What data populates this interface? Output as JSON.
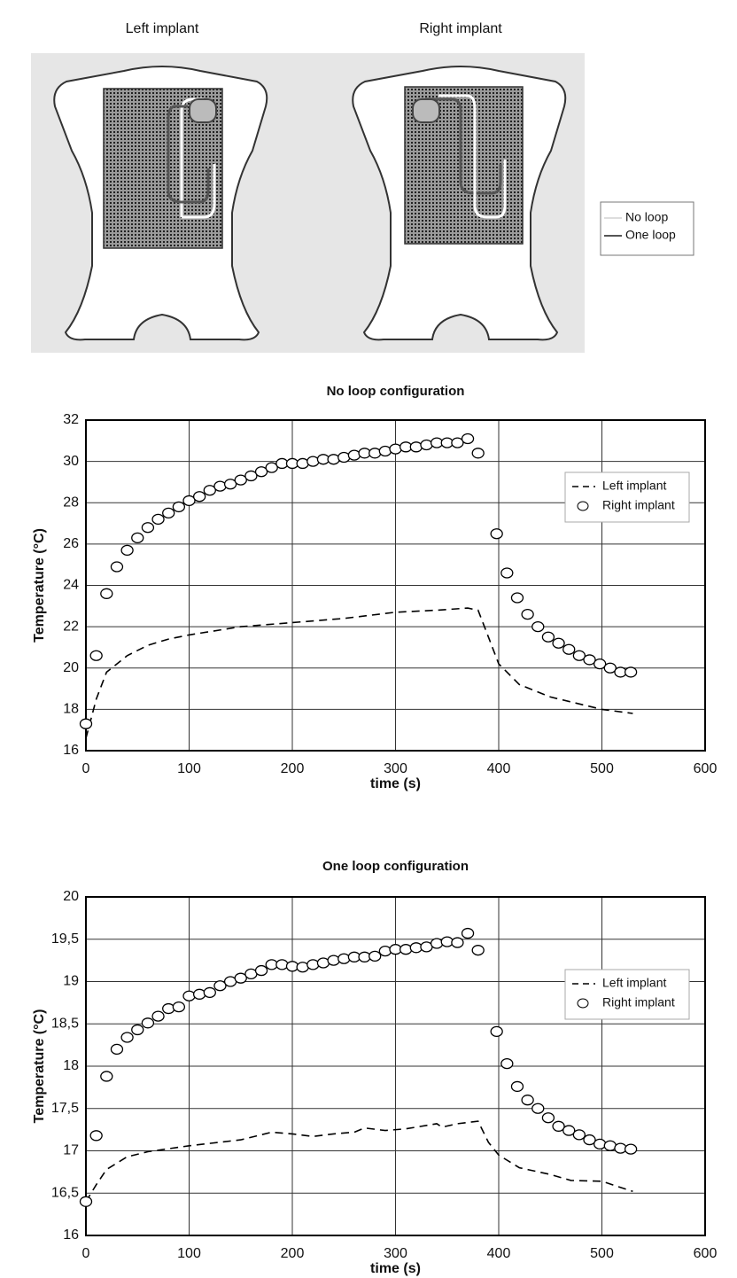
{
  "diagram": {
    "labels": [
      "Left implant",
      "Right implant"
    ],
    "legend": [
      "No loop",
      "One loop"
    ]
  },
  "chart_data": [
    {
      "type": "line",
      "title": "No loop configuration",
      "x_label": "time (s)",
      "y_label": "Temperature (°C)",
      "xlim": [
        0,
        600
      ],
      "xticks": [
        0,
        100,
        200,
        300,
        400,
        500,
        600
      ],
      "ylim": [
        16,
        32
      ],
      "yticks": [
        16,
        18,
        20,
        22,
        24,
        26,
        28,
        30,
        32
      ],
      "grid": true,
      "legend": "right",
      "series": [
        {
          "name": "Left implant",
          "color": "#000000",
          "style": "dashed",
          "x": [
            0,
            10,
            20,
            40,
            60,
            80,
            100,
            150,
            200,
            250,
            300,
            340,
            370,
            380,
            390,
            400,
            420,
            450,
            500,
            530
          ],
          "values": [
            16.6,
            18.5,
            19.8,
            20.6,
            21.1,
            21.4,
            21.6,
            22.0,
            22.2,
            22.4,
            22.7,
            22.8,
            22.9,
            22.8,
            21.5,
            20.2,
            19.2,
            18.6,
            18.0,
            17.8
          ]
        },
        {
          "name": "Right implant",
          "color": "#000000",
          "marker": "circle",
          "x": [
            0,
            10,
            20,
            30,
            40,
            50,
            60,
            70,
            80,
            90,
            100,
            110,
            120,
            130,
            140,
            150,
            160,
            170,
            180,
            190,
            200,
            210,
            220,
            230,
            240,
            250,
            260,
            270,
            280,
            290,
            300,
            310,
            320,
            330,
            340,
            350,
            360,
            370,
            380,
            398,
            408,
            418,
            428,
            438,
            448,
            458,
            468,
            478,
            488,
            498,
            508,
            518,
            528
          ],
          "values": [
            17.3,
            20.6,
            23.6,
            24.9,
            25.7,
            26.3,
            26.8,
            27.2,
            27.5,
            27.8,
            28.1,
            28.3,
            28.6,
            28.8,
            28.9,
            29.1,
            29.3,
            29.5,
            29.7,
            29.9,
            29.9,
            29.9,
            30.0,
            30.1,
            30.1,
            30.2,
            30.3,
            30.4,
            30.4,
            30.5,
            30.6,
            30.7,
            30.7,
            30.8,
            30.9,
            30.9,
            30.9,
            31.1,
            30.4,
            26.5,
            24.6,
            23.4,
            22.6,
            22.0,
            21.5,
            21.2,
            20.9,
            20.6,
            20.4,
            20.2,
            20.0,
            19.8,
            19.8
          ]
        }
      ]
    },
    {
      "type": "line",
      "title": "One loop configuration",
      "x_label": "time (s)",
      "y_label": "Temperature (°C)",
      "xlim": [
        0,
        600
      ],
      "xticks": [
        0,
        100,
        200,
        300,
        400,
        500,
        600
      ],
      "ylim": [
        16,
        20
      ],
      "yticks": [
        16,
        {
          "value": 16.5,
          "label": "16,5"
        },
        17,
        {
          "value": 17.5,
          "label": "17,5"
        },
        18,
        {
          "value": 18.5,
          "label": "18,5"
        },
        19,
        {
          "value": 19.5,
          "label": "19,5"
        },
        20
      ],
      "grid": true,
      "legend": "right",
      "series": [
        {
          "name": "Left implant",
          "color": "#000000",
          "style": "dashed",
          "x": [
            0,
            10,
            20,
            40,
            60,
            100,
            150,
            180,
            200,
            220,
            240,
            260,
            270,
            290,
            310,
            340,
            345,
            360,
            380,
            390,
            400,
            420,
            450,
            470,
            500,
            530
          ],
          "values": [
            16.4,
            16.6,
            16.78,
            16.93,
            16.99,
            17.06,
            17.13,
            17.22,
            17.2,
            17.17,
            17.2,
            17.22,
            17.27,
            17.24,
            17.26,
            17.32,
            17.28,
            17.32,
            17.35,
            17.1,
            16.95,
            16.8,
            16.72,
            16.65,
            16.64,
            16.52
          ]
        },
        {
          "name": "Right implant",
          "color": "#000000",
          "marker": "circle",
          "x": [
            0,
            10,
            20,
            30,
            40,
            50,
            60,
            70,
            80,
            90,
            100,
            110,
            120,
            130,
            140,
            150,
            160,
            170,
            180,
            190,
            200,
            210,
            220,
            230,
            240,
            250,
            260,
            270,
            280,
            290,
            300,
            310,
            320,
            330,
            340,
            350,
            360,
            370,
            380,
            398,
            408,
            418,
            428,
            438,
            448,
            458,
            468,
            478,
            488,
            498,
            508,
            518,
            528
          ],
          "values": [
            16.4,
            17.18,
            17.88,
            18.2,
            18.34,
            18.43,
            18.51,
            18.59,
            18.68,
            18.7,
            18.83,
            18.85,
            18.87,
            18.95,
            19.0,
            19.04,
            19.09,
            19.13,
            19.2,
            19.2,
            19.18,
            19.17,
            19.2,
            19.22,
            19.25,
            19.27,
            19.29,
            19.29,
            19.3,
            19.36,
            19.38,
            19.38,
            19.4,
            19.41,
            19.45,
            19.47,
            19.46,
            19.57,
            19.37,
            18.41,
            18.03,
            17.76,
            17.6,
            17.5,
            17.39,
            17.29,
            17.24,
            17.19,
            17.13,
            17.08,
            17.06,
            17.03,
            17.02
          ]
        }
      ]
    }
  ]
}
